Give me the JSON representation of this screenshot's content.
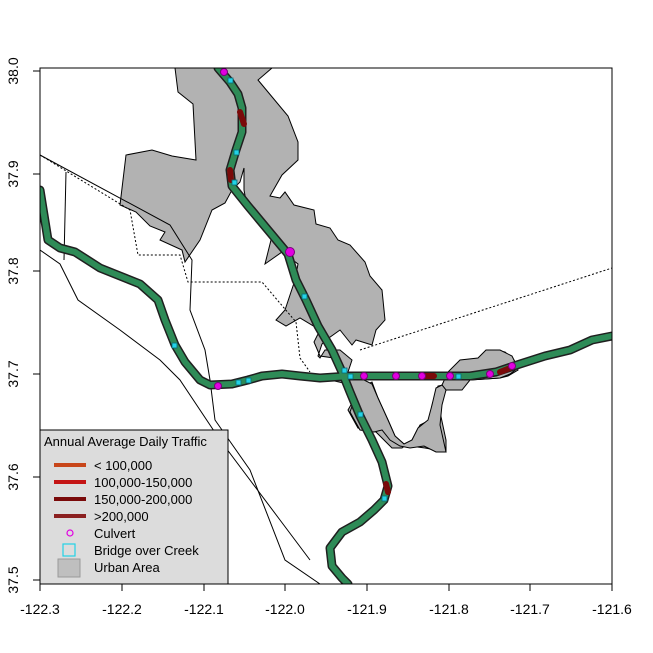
{
  "axes": {
    "x_ticks": [
      "-122.3",
      "-122.2",
      "-122.1",
      "-122.0",
      "-121.9",
      "-121.8",
      "-121.7",
      "-121.6"
    ],
    "y_ticks": [
      "37.5",
      "37.6",
      "37.7",
      "37.8",
      "37.9",
      "38.0"
    ]
  },
  "legend": {
    "title": "Annual Average Daily Traffic",
    "items": [
      {
        "label": "< 100,000",
        "kind": "line",
        "color": "#c8461a"
      },
      {
        "label": "100,000-150,000",
        "kind": "line",
        "color": "#c41414"
      },
      {
        "label": "150,000-200,000",
        "kind": "line",
        "color": "#7a0a0a"
      },
      {
        "label": ">200,000",
        "kind": "line",
        "color": "#8b2020"
      },
      {
        "label": "Culvert",
        "kind": "circle",
        "color": "#e100e1"
      },
      {
        "label": "Bridge over Creek",
        "kind": "square",
        "color": "#22d3e6"
      },
      {
        "label": "Urban Area",
        "kind": "rect",
        "color": "#bfbfbf"
      }
    ]
  },
  "colors": {
    "road": "#2e8b57",
    "road_outline": "#1f1f1f",
    "urban": "#b2b2b2",
    "culvert": "#e100e1",
    "bridge": "#22d3e6",
    "segment_high": "#7a0a0a"
  }
}
